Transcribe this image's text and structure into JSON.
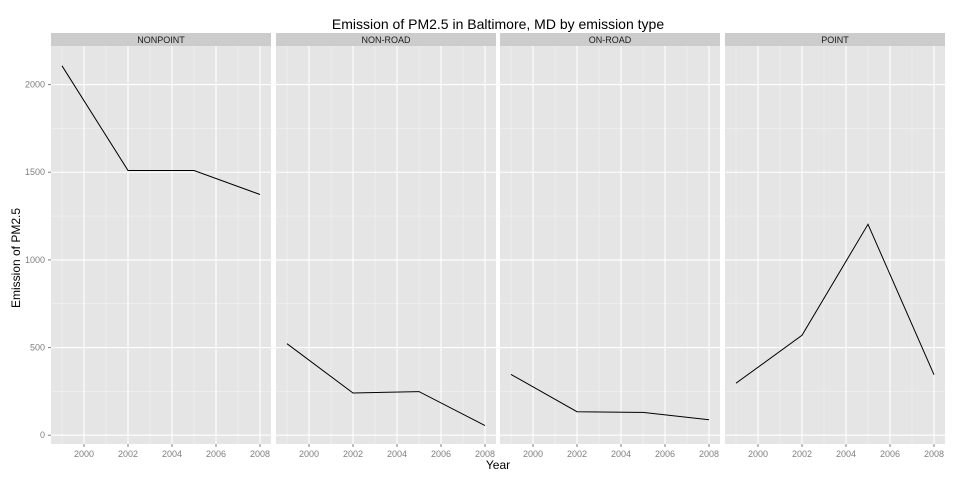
{
  "chart_data": {
    "type": "line",
    "title": "Emission of PM2.5 in Baltimore, MD by emission type",
    "xlabel": "Year",
    "ylabel": "Emission of PM2.5",
    "xlim": [
      1998.5,
      2008.5
    ],
    "ylim": [
      -50,
      2220
    ],
    "x_ticks": [
      2000,
      2002,
      2004,
      2006,
      2008
    ],
    "y_ticks": [
      0,
      500,
      1000,
      1500,
      2000
    ],
    "grid": true,
    "facets": [
      {
        "name": "NONPOINT",
        "x": [
          1999,
          2002,
          2005,
          2008
        ],
        "values": [
          2107,
          1510,
          1510,
          1373
        ]
      },
      {
        "name": "NON-ROAD",
        "x": [
          1999,
          2002,
          2005,
          2008
        ],
        "values": [
          522,
          241,
          249,
          55
        ]
      },
      {
        "name": "ON-ROAD",
        "x": [
          1999,
          2002,
          2005,
          2008
        ],
        "values": [
          347,
          134,
          130,
          88
        ]
      },
      {
        "name": "POINT",
        "x": [
          1999,
          2002,
          2005,
          2008
        ],
        "values": [
          297,
          570,
          1203,
          345
        ]
      }
    ]
  },
  "colors": {
    "panel_bg": "#e5e5e5",
    "strip_bg": "#cccccc",
    "grid_major": "#ffffff",
    "grid_minor": "#f2f2f2",
    "line": "#000000"
  }
}
